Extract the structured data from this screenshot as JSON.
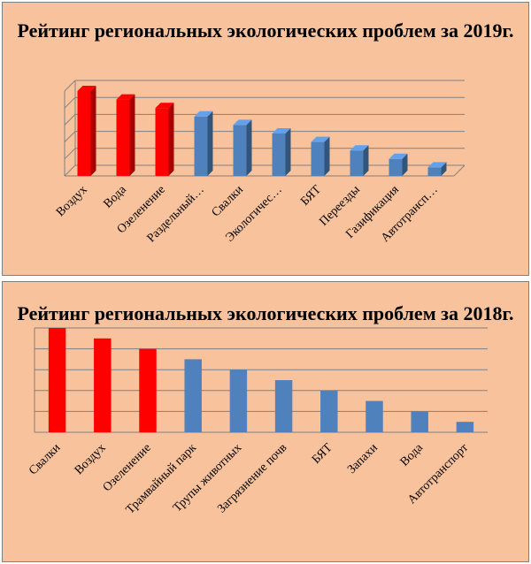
{
  "chart_data": [
    {
      "type": "bar",
      "title": "Рейтинг региональных экологических проблем за 2019г.",
      "categories": [
        "Воздух",
        "Вода",
        "Озеленение",
        "Раздельный…",
        "Свалки",
        "Экологичес…",
        "БЯТ",
        "Переезды",
        "Газификация",
        "Автотрансп…"
      ],
      "values": [
        10,
        9,
        8,
        7,
        6,
        5,
        4,
        3,
        2,
        1
      ],
      "bar_colors": [
        "#ff0000",
        "#ff0000",
        "#ff0000",
        "#4f81bd",
        "#4f81bd",
        "#4f81bd",
        "#4f81bd",
        "#4f81bd",
        "#4f81bd",
        "#4f81bd"
      ],
      "ylim": [
        0,
        10
      ],
      "grid": true,
      "style": "3d"
    },
    {
      "type": "bar",
      "title": "Рейтинг региональных экологических проблем за 2018г.",
      "categories": [
        "Свалки",
        "Воздух",
        "Озеленение",
        "Трамвайный парк",
        "Трупы животных",
        "Загрязнение почв",
        "БЯТ",
        "Запахи",
        "Вода",
        "Автотранспорт"
      ],
      "values": [
        10,
        9,
        8,
        7,
        6,
        5,
        4,
        3,
        2,
        1
      ],
      "bar_colors": [
        "#ff0000",
        "#ff0000",
        "#ff0000",
        "#4f81bd",
        "#4f81bd",
        "#4f81bd",
        "#4f81bd",
        "#4f81bd",
        "#4f81bd",
        "#4f81bd"
      ],
      "ylim": [
        0,
        10
      ],
      "grid": true,
      "style": "3d"
    }
  ]
}
